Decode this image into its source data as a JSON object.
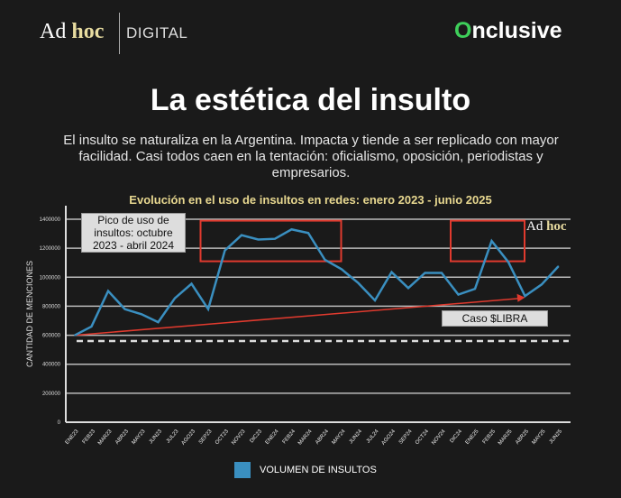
{
  "header": {
    "logo_left_a": "Ad",
    "logo_left_b": "hoc",
    "logo_left_suffix": "DIGITAL",
    "logo_right_o": "O",
    "logo_right_rest": "nclusive"
  },
  "title": "La estética del insulto",
  "subtitle": "El insulto se naturaliza en la Argentina. Impacta y tiende a ser replicado con mayor facilidad. Casi todos caen en la tentación: oficialismo, oposición, periodistas y empresarios.",
  "chart_data": {
    "type": "line",
    "title": "Evolución en el uso de insultos en redes: enero 2023 - junio 2025",
    "ylabel": "CANTIDAD DE MENCIONES",
    "ylim": [
      0,
      1400000
    ],
    "yticks": [
      "0",
      "200000",
      "400000",
      "600000",
      "800000",
      "1000000",
      "1200000",
      "1400000"
    ],
    "grid": true,
    "categories": [
      "ENE23",
      "FEB23",
      "MAR23",
      "ABR23",
      "MAY23",
      "JUN23",
      "JUL23",
      "AGO23",
      "SEP23",
      "OCT23",
      "NOV23",
      "DIC23",
      "ENE24",
      "FEB24",
      "MAR24",
      "ABR24",
      "MAY24",
      "JUN24",
      "JUL24",
      "AGO24",
      "SEP24",
      "OCT24",
      "NOV24",
      "DIC24",
      "ENE25",
      "FEB25",
      "MAR25",
      "ABR25",
      "MAY25",
      "JUN25"
    ],
    "series": [
      {
        "name": "VOLUMEN DE INSULTOS",
        "color": "#3a8fc0",
        "values": [
          600000,
          660000,
          905000,
          780000,
          745000,
          690000,
          855000,
          955000,
          780000,
          1185000,
          1290000,
          1260000,
          1265000,
          1330000,
          1305000,
          1120000,
          1055000,
          960000,
          840000,
          1035000,
          925000,
          1030000,
          1030000,
          880000,
          920000,
          1250000,
          1105000,
          870000,
          950000,
          1075000
        ]
      }
    ],
    "reference_line": {
      "value": 560000,
      "style": "dashed",
      "color": "#dddddd"
    },
    "trend_arrow": {
      "from": [
        "ENE23",
        600000
      ],
      "to": [
        "ABR25",
        860000
      ],
      "color": "#e03a2e"
    },
    "highlight_boxes": [
      {
        "from": "OCT23",
        "to": "ABR24",
        "color": "#e03a2e"
      },
      {
        "from": "ENE25",
        "to": "MAR25",
        "color": "#e03a2e"
      }
    ],
    "annotations": [
      "Pico de uso de insultos: octubre 2023 - abril 2024",
      "Caso $LIBRA"
    ],
    "watermark_a": "Ad",
    "watermark_b": "hoc",
    "legend_placement": "bottom"
  }
}
